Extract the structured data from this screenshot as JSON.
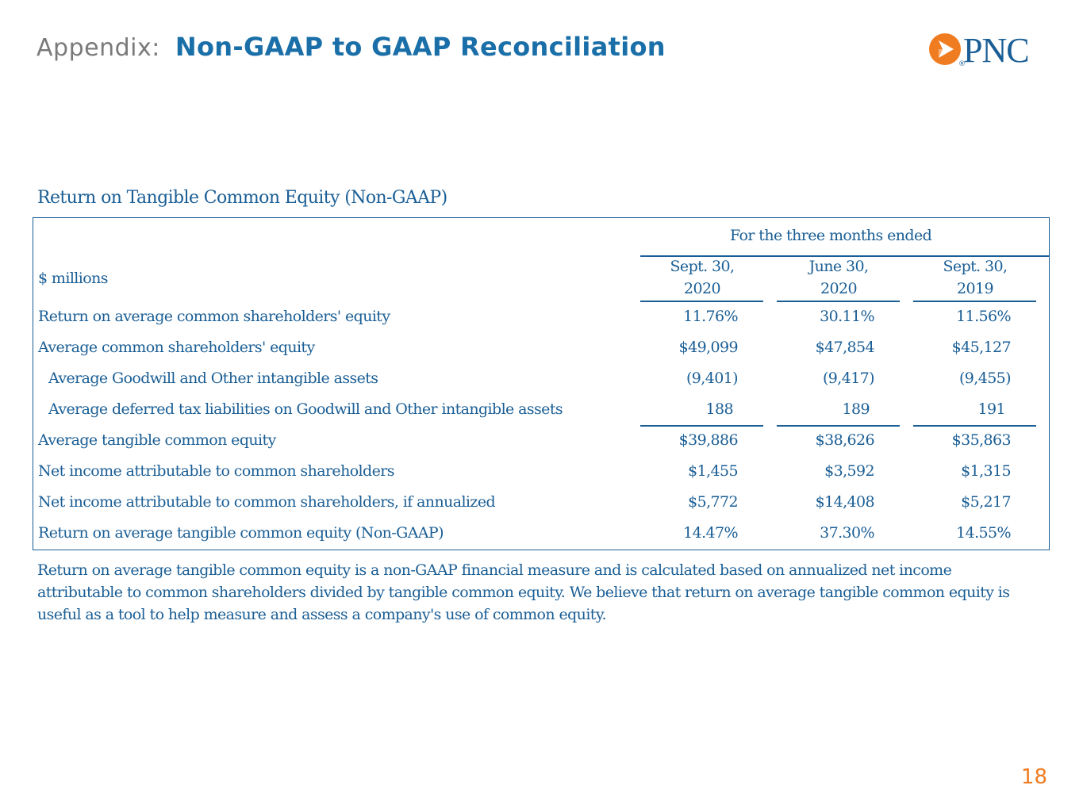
{
  "header": {
    "prefix": "Appendix:",
    "title": "Non-GAAP to GAAP Reconciliation"
  },
  "logo": {
    "text": "PNC",
    "reg": "®",
    "color_orange": "#ef7c21",
    "color_blue": "#1a5e95"
  },
  "table": {
    "title": "Return on Tangible Common Equity (Non-GAAP)",
    "period_header": "For the three months ended",
    "units_label": "$ millions",
    "columns": [
      {
        "line1": "Sept. 30,",
        "line2": "2020"
      },
      {
        "line1": "June 30,",
        "line2": "2020"
      },
      {
        "line1": "Sept. 30,",
        "line2": "2019"
      }
    ],
    "rows": [
      {
        "label": "Return on average common shareholders' equity",
        "values": [
          "11.76%",
          "30.11%",
          "11.56%"
        ]
      },
      {
        "label": "Average common shareholders' equity",
        "values": [
          "$49,099",
          "$47,854",
          "$45,127"
        ]
      },
      {
        "label": "Average Goodwill and Other intangible assets",
        "values": [
          "(9,401)",
          "(9,417)",
          "(9,455)"
        ]
      },
      {
        "label": "Average deferred tax liabilities on Goodwill and Other intangible assets",
        "values": [
          "188",
          "189",
          "191"
        ]
      },
      {
        "label": "Average tangible common equity",
        "values": [
          "$39,886",
          "$38,626",
          "$35,863"
        ]
      },
      {
        "label": "Net income attributable to common shareholders",
        "values": [
          "$1,455",
          "$3,592",
          "$1,315"
        ]
      },
      {
        "label": "Net income attributable to common shareholders, if annualized",
        "values": [
          "$5,772",
          "$14,408",
          "$5,217"
        ]
      },
      {
        "label": "Return on average tangible common equity (Non-GAAP)",
        "values": [
          "14.47%",
          "37.30%",
          "14.55%"
        ]
      }
    ]
  },
  "footnote": "Return on average tangible common equity is a non-GAAP financial measure and is calculated based on annualized net income attributable to common shareholders divided by tangible common equity.  We believe that return on average tangible common equity is useful as a tool to help measure and assess a company's use of common equity.",
  "page_number": "18",
  "colors": {
    "text_blue": "#1a5e95",
    "title_blue": "#1a6fa8",
    "gray": "#7a7a7a",
    "accent_orange": "#ef7c21"
  }
}
